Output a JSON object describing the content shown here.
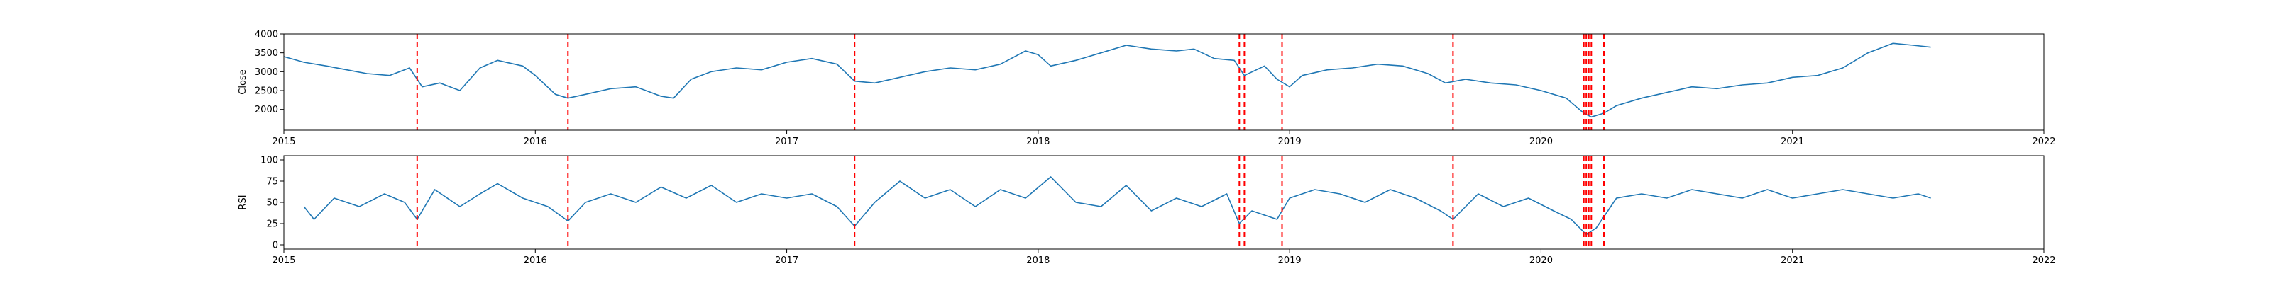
{
  "chart_data": [
    {
      "type": "line",
      "title": "",
      "xlabel": "",
      "ylabel": "Close",
      "xlim": [
        2015,
        2022
      ],
      "ylim": [
        1450,
        4000
      ],
      "x_ticks": [
        "2015",
        "2016",
        "2017",
        "2018",
        "2019",
        "2020",
        "2021",
        "2022"
      ],
      "y_ticks": [
        2000,
        2500,
        3000,
        3500,
        4000
      ],
      "grid": false,
      "line_color": "#1f77b4",
      "event_color": "#ff0000",
      "series": [
        {
          "x": [
            2015.0,
            2015.08,
            2015.17,
            2015.25,
            2015.33,
            2015.42,
            2015.5,
            2015.55,
            2015.62,
            2015.7,
            2015.78,
            2015.85,
            2015.95,
            2016.0,
            2016.08,
            2016.13,
            2016.2,
            2016.3,
            2016.4,
            2016.5,
            2016.55,
            2016.62,
            2016.7,
            2016.8,
            2016.9,
            2017.0,
            2017.1,
            2017.2,
            2017.27,
            2017.35,
            2017.45,
            2017.55,
            2017.65,
            2017.75,
            2017.85,
            2017.95,
            2018.0,
            2018.05,
            2018.15,
            2018.25,
            2018.35,
            2018.45,
            2018.55,
            2018.62,
            2018.7,
            2018.78,
            2018.82,
            2018.9,
            2018.95,
            2019.0,
            2019.05,
            2019.15,
            2019.25,
            2019.35,
            2019.45,
            2019.55,
            2019.62,
            2019.7,
            2019.8,
            2019.9,
            2020.0,
            2020.1,
            2020.17,
            2020.2,
            2020.25,
            2020.3,
            2020.4,
            2020.5,
            2020.6,
            2020.7,
            2020.8,
            2020.9,
            2021.0,
            2021.1,
            2021.2,
            2021.3,
            2021.4,
            2021.48,
            2021.55
          ],
          "values": [
            3400,
            3250,
            3150,
            3050,
            2950,
            2900,
            3100,
            2600,
            2700,
            2500,
            3100,
            3300,
            3150,
            2900,
            2400,
            2300,
            2400,
            2550,
            2600,
            2350,
            2300,
            2800,
            3000,
            3100,
            3050,
            3250,
            3350,
            3200,
            2750,
            2700,
            2850,
            3000,
            3100,
            3050,
            3200,
            3550,
            3450,
            3150,
            3300,
            3500,
            3700,
            3600,
            3550,
            3600,
            3350,
            3300,
            2900,
            3150,
            2800,
            2600,
            2900,
            3050,
            3100,
            3200,
            3150,
            2950,
            2700,
            2800,
            2700,
            2650,
            2500,
            2300,
            1900,
            1800,
            1900,
            2100,
            2300,
            2450,
            2600,
            2550,
            2650,
            2700,
            2850,
            2900,
            3100,
            3500,
            3750,
            3700,
            3650
          ]
        }
      ],
      "event_lines_x": [
        2015.53,
        2016.13,
        2017.27,
        2018.8,
        2018.82,
        2018.97,
        2019.65,
        2020.17,
        2020.18,
        2020.19,
        2020.2,
        2020.25
      ]
    },
    {
      "type": "line",
      "title": "",
      "xlabel": "",
      "ylabel": "RSI",
      "xlim": [
        2015,
        2022
      ],
      "ylim": [
        -5,
        105
      ],
      "x_ticks": [
        "2015",
        "2016",
        "2017",
        "2018",
        "2019",
        "2020",
        "2021",
        "2022"
      ],
      "y_ticks": [
        0,
        25,
        50,
        75,
        100
      ],
      "grid": false,
      "line_color": "#1f77b4",
      "event_color": "#ff0000",
      "series": [
        {
          "x": [
            2015.08,
            2015.12,
            2015.2,
            2015.3,
            2015.4,
            2015.48,
            2015.53,
            2015.6,
            2015.7,
            2015.78,
            2015.85,
            2015.95,
            2016.05,
            2016.13,
            2016.2,
            2016.3,
            2016.4,
            2016.5,
            2016.6,
            2016.7,
            2016.8,
            2016.9,
            2017.0,
            2017.1,
            2017.2,
            2017.27,
            2017.35,
            2017.45,
            2017.55,
            2017.65,
            2017.75,
            2017.85,
            2017.95,
            2018.05,
            2018.15,
            2018.25,
            2018.35,
            2018.45,
            2018.55,
            2018.65,
            2018.75,
            2018.8,
            2018.85,
            2018.95,
            2019.0,
            2019.1,
            2019.2,
            2019.3,
            2019.4,
            2019.5,
            2019.6,
            2019.65,
            2019.75,
            2019.85,
            2019.95,
            2020.05,
            2020.12,
            2020.18,
            2020.22,
            2020.3,
            2020.4,
            2020.5,
            2020.6,
            2020.7,
            2020.8,
            2020.9,
            2021.0,
            2021.1,
            2021.2,
            2021.3,
            2021.4,
            2021.5,
            2021.55
          ],
          "values": [
            45,
            30,
            55,
            45,
            60,
            50,
            30,
            65,
            45,
            60,
            72,
            55,
            45,
            28,
            50,
            60,
            50,
            68,
            55,
            70,
            50,
            60,
            55,
            60,
            45,
            22,
            50,
            75,
            55,
            65,
            45,
            65,
            55,
            80,
            50,
            45,
            70,
            40,
            55,
            45,
            60,
            25,
            40,
            30,
            55,
            65,
            60,
            50,
            65,
            55,
            40,
            30,
            60,
            45,
            55,
            40,
            30,
            12,
            20,
            55,
            60,
            55,
            65,
            60,
            55,
            65,
            55,
            60,
            65,
            60,
            55,
            60,
            55
          ]
        }
      ],
      "event_lines_x": [
        2015.53,
        2016.13,
        2017.27,
        2018.8,
        2018.82,
        2018.97,
        2019.65,
        2020.17,
        2020.18,
        2020.19,
        2020.2,
        2020.25
      ]
    }
  ]
}
